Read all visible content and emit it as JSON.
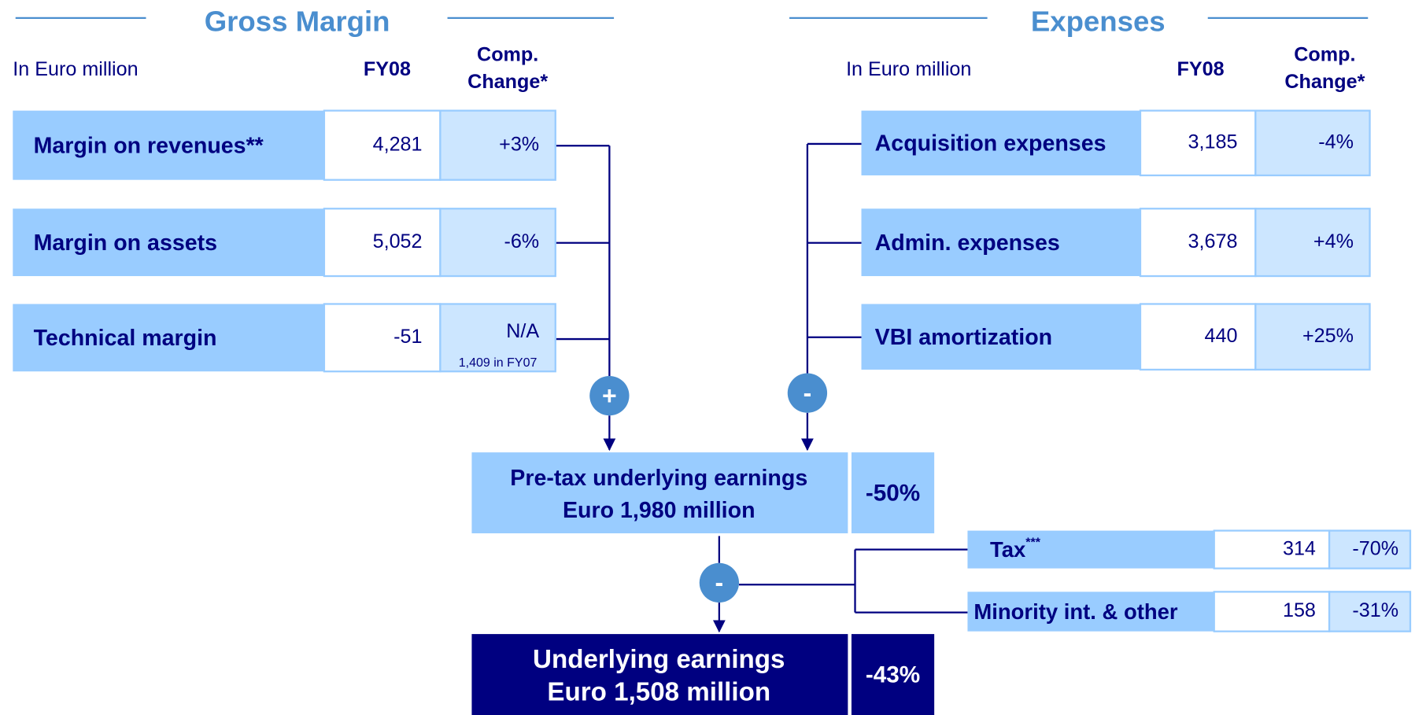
{
  "gross_margin": {
    "title": "Gross Margin",
    "unit": "In Euro million",
    "col_value": "FY08",
    "col_change": [
      "Comp.",
      "Change*"
    ],
    "operator": "+",
    "rows": [
      {
        "label": "Margin on revenues**",
        "value": "4,281",
        "change": "+3%"
      },
      {
        "label": "Margin on assets",
        "value": "5,052",
        "change": "-6%"
      },
      {
        "label": "Technical margin",
        "value": "-51",
        "change": "N/A",
        "note": "1,409 in FY07"
      }
    ]
  },
  "expenses": {
    "title": "Expenses",
    "unit": "In Euro million",
    "col_value": "FY08",
    "col_change": [
      "Comp.",
      "Change*"
    ],
    "operator": "-",
    "rows": [
      {
        "label": "Acquisition expenses",
        "value": "3,185",
        "change": "-4%"
      },
      {
        "label": "Admin. expenses",
        "value": "3,678",
        "change": "+4%"
      },
      {
        "label": "VBI amortization",
        "value": "440",
        "change": "+25%"
      }
    ]
  },
  "pre_tax": {
    "lines": [
      "Pre-tax underlying earnings",
      "Euro 1,980 million"
    ],
    "change": "-50%"
  },
  "deductions": {
    "operator": "-",
    "rows": [
      {
        "label": "Tax",
        "sup": "***",
        "value": "314",
        "change": "-70%"
      },
      {
        "label": "Minority int. & other",
        "value": "158",
        "change": "-31%"
      }
    ]
  },
  "result": {
    "lines": [
      "Underlying earnings",
      "Euro 1,508 million"
    ],
    "change": "-43%"
  }
}
